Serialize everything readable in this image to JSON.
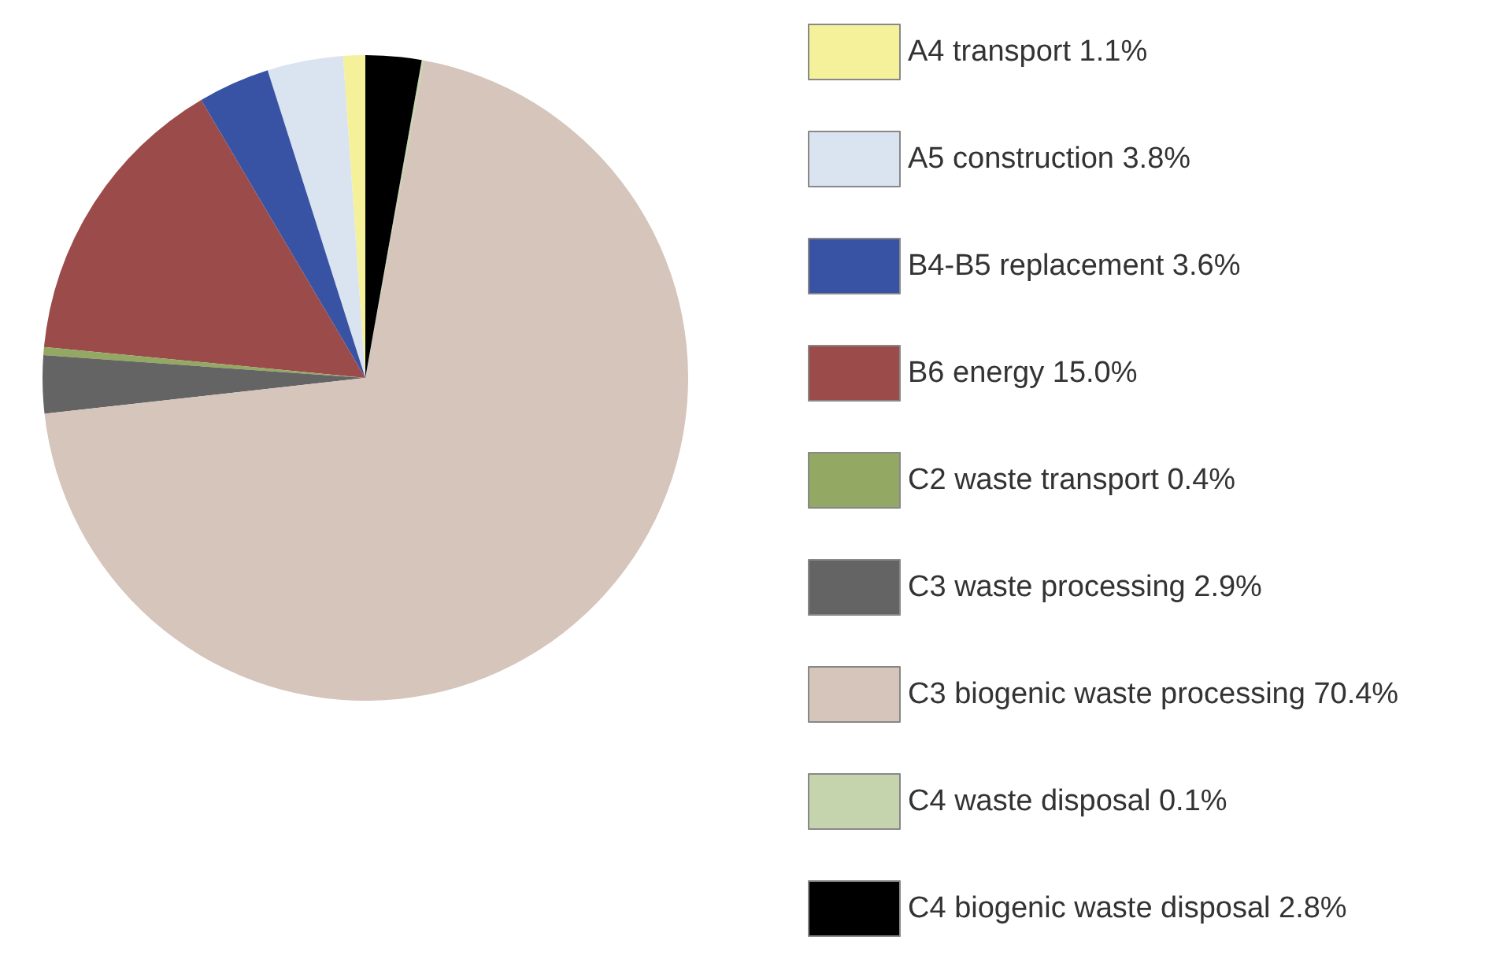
{
  "chart_data": {
    "type": "pie",
    "categories": [
      "A4 transport 1.1%",
      "A5 construction 3.8%",
      "B4-B5 replacement 3.6%",
      "B6 energy 15.0%",
      "C2 waste transport 0.4%",
      "C3 waste processing 2.9%",
      "C3 biogenic waste processing 70.4%",
      "C4 waste disposal 0.1%",
      "C4 biogenic waste disposal 2.8%"
    ],
    "values": [
      1.1,
      3.8,
      3.6,
      15.0,
      0.4,
      2.9,
      70.4,
      0.1,
      2.8
    ],
    "colors": [
      "#f5f19a",
      "#dae3f0",
      "#3953a4",
      "#9a4b4a",
      "#93a862",
      "#646464",
      "#d5c5bb",
      "#c5d4ad",
      "#000000"
    ],
    "legend": "right"
  }
}
